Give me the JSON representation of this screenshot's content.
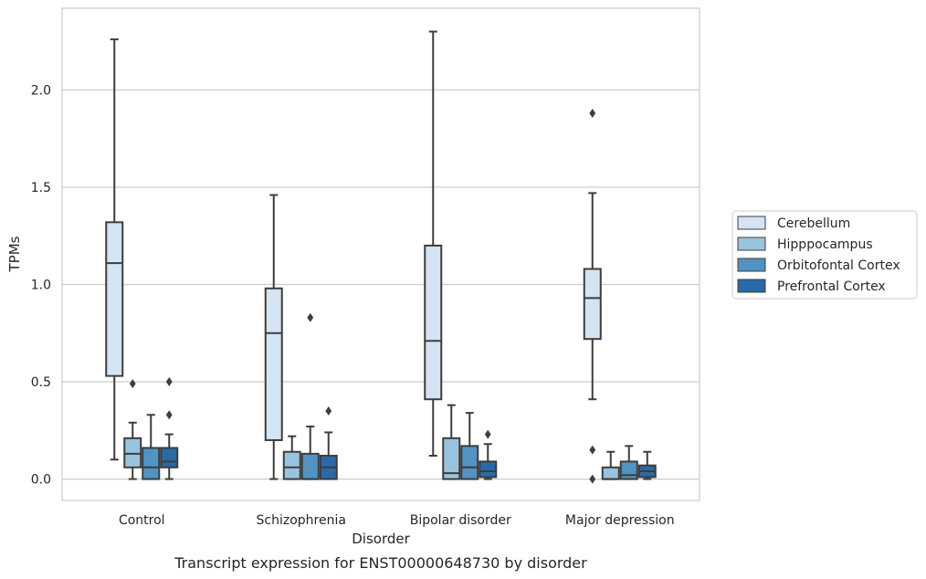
{
  "chart_data": {
    "type": "box",
    "caption": "Transcript expression for ENST00000648730 by disorder",
    "xlabel": "Disorder",
    "ylabel": "TPMs",
    "categories": [
      "Control",
      "Schizophrenia",
      "Bipolar disorder",
      "Major depression"
    ],
    "ylim": [
      -0.11,
      2.42
    ],
    "yticks": [
      0.0,
      0.5,
      1.0,
      1.5,
      2.0
    ],
    "ytick_labels": [
      "0.0",
      "0.5",
      "1.0",
      "1.5",
      "2.0"
    ],
    "grid": "horizontal",
    "legend_position": "outside-right",
    "series": [
      {
        "name": "Cerebellum",
        "color": "#d4e4f3",
        "boxes": [
          {
            "whislo": 0.1,
            "q1": 0.53,
            "med": 1.11,
            "q3": 1.32,
            "whishi": 2.26,
            "fliers": []
          },
          {
            "whislo": 0.0,
            "q1": 0.2,
            "med": 0.75,
            "q3": 0.98,
            "whishi": 1.46,
            "fliers": []
          },
          {
            "whislo": 0.12,
            "q1": 0.41,
            "med": 0.71,
            "q3": 1.2,
            "whishi": 2.3,
            "fliers": []
          },
          {
            "whislo": 0.41,
            "q1": 0.72,
            "med": 0.93,
            "q3": 1.08,
            "whishi": 1.47,
            "fliers": [
              1.88,
              0.15,
              0.0
            ]
          }
        ]
      },
      {
        "name": "Hipppocampus",
        "color": "#9ac4de",
        "boxes": [
          {
            "whislo": 0.0,
            "q1": 0.06,
            "med": 0.13,
            "q3": 0.21,
            "whishi": 0.29,
            "fliers": [
              0.49
            ]
          },
          {
            "whislo": 0.0,
            "q1": 0.0,
            "med": 0.06,
            "q3": 0.14,
            "whishi": 0.22,
            "fliers": []
          },
          {
            "whislo": 0.0,
            "q1": 0.0,
            "med": 0.03,
            "q3": 0.21,
            "whishi": 0.38,
            "fliers": []
          },
          {
            "whislo": 0.0,
            "q1": 0.0,
            "med": 0.0,
            "q3": 0.06,
            "whishi": 0.14,
            "fliers": []
          }
        ]
      },
      {
        "name": "Orbitofontal Cortex",
        "color": "#5293c2",
        "boxes": [
          {
            "whislo": 0.0,
            "q1": 0.0,
            "med": 0.06,
            "q3": 0.16,
            "whishi": 0.33,
            "fliers": []
          },
          {
            "whislo": 0.0,
            "q1": 0.0,
            "med": 0.0,
            "q3": 0.13,
            "whishi": 0.27,
            "fliers": [
              0.83
            ]
          },
          {
            "whislo": 0.0,
            "q1": 0.0,
            "med": 0.06,
            "q3": 0.17,
            "whishi": 0.34,
            "fliers": []
          },
          {
            "whislo": 0.0,
            "q1": 0.0,
            "med": 0.02,
            "q3": 0.09,
            "whishi": 0.17,
            "fliers": []
          }
        ]
      },
      {
        "name": "Prefrontal Cortex",
        "color": "#2a69a8",
        "boxes": [
          {
            "whislo": 0.0,
            "q1": 0.06,
            "med": 0.09,
            "q3": 0.16,
            "whishi": 0.23,
            "fliers": [
              0.5,
              0.33
            ]
          },
          {
            "whislo": 0.0,
            "q1": 0.0,
            "med": 0.06,
            "q3": 0.12,
            "whishi": 0.24,
            "fliers": [
              0.35
            ]
          },
          {
            "whislo": 0.0,
            "q1": 0.01,
            "med": 0.04,
            "q3": 0.09,
            "whishi": 0.18,
            "fliers": [
              0.23
            ]
          },
          {
            "whislo": 0.0,
            "q1": 0.01,
            "med": 0.04,
            "q3": 0.07,
            "whishi": 0.14,
            "fliers": []
          }
        ]
      }
    ]
  }
}
